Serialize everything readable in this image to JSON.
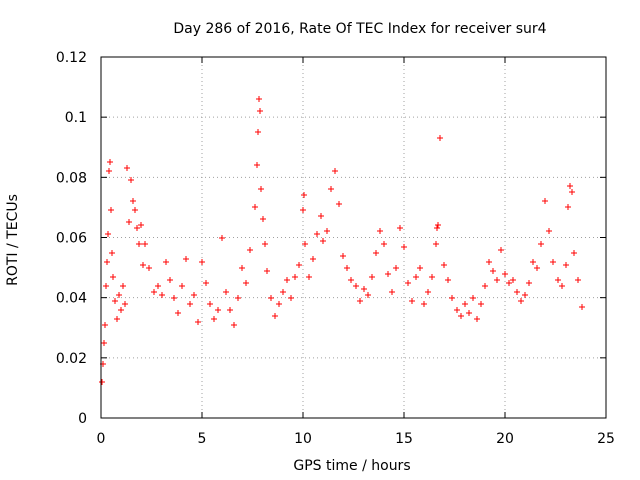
{
  "chart_data": {
    "type": "scatter",
    "title": "Day 286 of 2016, Rate Of TEC Index for receiver sur4",
    "xlabel": "GPS time / hours",
    "ylabel": "ROTI / TECUs",
    "xlim": [
      0,
      25
    ],
    "ylim": [
      0,
      0.12
    ],
    "xticks": [
      0,
      5,
      10,
      15,
      20,
      25
    ],
    "xtick_labels": [
      "0",
      "5",
      "10",
      "15",
      "20",
      "25"
    ],
    "yticks": [
      0,
      0.02,
      0.04,
      0.06,
      0.08,
      0.1,
      0.12
    ],
    "ytick_labels": [
      "0",
      "0.02",
      "0.04",
      "0.06",
      "0.08",
      "0.1",
      "0.12"
    ],
    "grid": true,
    "marker": "+",
    "color": "#ff0000",
    "series": [
      {
        "name": "ROTI",
        "points": [
          [
            0.05,
            0.012
          ],
          [
            0.1,
            0.018
          ],
          [
            0.15,
            0.025
          ],
          [
            0.2,
            0.031
          ],
          [
            0.25,
            0.044
          ],
          [
            0.3,
            0.052
          ],
          [
            0.35,
            0.061
          ],
          [
            0.4,
            0.082
          ],
          [
            0.45,
            0.085
          ],
          [
            0.5,
            0.069
          ],
          [
            0.55,
            0.055
          ],
          [
            0.6,
            0.047
          ],
          [
            0.7,
            0.039
          ],
          [
            0.8,
            0.033
          ],
          [
            0.9,
            0.041
          ],
          [
            1.0,
            0.036
          ],
          [
            1.1,
            0.044
          ],
          [
            1.2,
            0.038
          ],
          [
            1.3,
            0.083
          ],
          [
            1.4,
            0.065
          ],
          [
            1.5,
            0.079
          ],
          [
            1.6,
            0.072
          ],
          [
            1.7,
            0.069
          ],
          [
            1.8,
            0.063
          ],
          [
            1.9,
            0.058
          ],
          [
            2.0,
            0.064
          ],
          [
            2.1,
            0.051
          ],
          [
            2.2,
            0.058
          ],
          [
            2.4,
            0.05
          ],
          [
            2.6,
            0.042
          ],
          [
            2.8,
            0.044
          ],
          [
            3.0,
            0.041
          ],
          [
            3.2,
            0.052
          ],
          [
            3.4,
            0.046
          ],
          [
            3.6,
            0.04
          ],
          [
            3.8,
            0.035
          ],
          [
            4.0,
            0.044
          ],
          [
            4.2,
            0.053
          ],
          [
            4.4,
            0.038
          ],
          [
            4.6,
            0.041
          ],
          [
            4.8,
            0.032
          ],
          [
            5.0,
            0.052
          ],
          [
            5.2,
            0.045
          ],
          [
            5.4,
            0.038
          ],
          [
            5.6,
            0.033
          ],
          [
            5.8,
            0.036
          ],
          [
            6.0,
            0.06
          ],
          [
            6.2,
            0.042
          ],
          [
            6.4,
            0.036
          ],
          [
            6.6,
            0.031
          ],
          [
            6.8,
            0.04
          ],
          [
            7.0,
            0.05
          ],
          [
            7.2,
            0.045
          ],
          [
            7.4,
            0.056
          ],
          [
            7.6,
            0.07
          ],
          [
            7.7,
            0.084
          ],
          [
            7.75,
            0.095
          ],
          [
            7.8,
            0.106
          ],
          [
            7.85,
            0.102
          ],
          [
            7.9,
            0.076
          ],
          [
            8.0,
            0.066
          ],
          [
            8.1,
            0.058
          ],
          [
            8.2,
            0.049
          ],
          [
            8.4,
            0.04
          ],
          [
            8.6,
            0.034
          ],
          [
            8.8,
            0.038
          ],
          [
            9.0,
            0.042
          ],
          [
            9.2,
            0.046
          ],
          [
            9.4,
            0.04
          ],
          [
            9.6,
            0.047
          ],
          [
            9.8,
            0.051
          ],
          [
            10.0,
            0.069
          ],
          [
            10.05,
            0.074
          ],
          [
            10.1,
            0.058
          ],
          [
            10.3,
            0.047
          ],
          [
            10.5,
            0.053
          ],
          [
            10.7,
            0.061
          ],
          [
            10.9,
            0.067
          ],
          [
            11.0,
            0.059
          ],
          [
            11.2,
            0.062
          ],
          [
            11.4,
            0.076
          ],
          [
            11.6,
            0.082
          ],
          [
            11.8,
            0.071
          ],
          [
            12.0,
            0.054
          ],
          [
            12.2,
            0.05
          ],
          [
            12.4,
            0.046
          ],
          [
            12.6,
            0.044
          ],
          [
            12.8,
            0.039
          ],
          [
            13.0,
            0.043
          ],
          [
            13.2,
            0.041
          ],
          [
            13.4,
            0.047
          ],
          [
            13.6,
            0.055
          ],
          [
            13.8,
            0.062
          ],
          [
            14.0,
            0.058
          ],
          [
            14.2,
            0.048
          ],
          [
            14.4,
            0.042
          ],
          [
            14.6,
            0.05
          ],
          [
            14.8,
            0.063
          ],
          [
            15.0,
            0.057
          ],
          [
            15.2,
            0.045
          ],
          [
            15.4,
            0.039
          ],
          [
            15.6,
            0.047
          ],
          [
            15.8,
            0.05
          ],
          [
            16.0,
            0.038
          ],
          [
            16.2,
            0.042
          ],
          [
            16.4,
            0.047
          ],
          [
            16.6,
            0.058
          ],
          [
            16.65,
            0.063
          ],
          [
            16.7,
            0.064
          ],
          [
            16.8,
            0.093
          ],
          [
            17.0,
            0.051
          ],
          [
            17.2,
            0.046
          ],
          [
            17.4,
            0.04
          ],
          [
            17.6,
            0.036
          ],
          [
            17.8,
            0.034
          ],
          [
            18.0,
            0.038
          ],
          [
            18.2,
            0.035
          ],
          [
            18.4,
            0.04
          ],
          [
            18.6,
            0.033
          ],
          [
            18.8,
            0.038
          ],
          [
            19.0,
            0.044
          ],
          [
            19.2,
            0.052
          ],
          [
            19.4,
            0.049
          ],
          [
            19.6,
            0.046
          ],
          [
            19.8,
            0.056
          ],
          [
            20.0,
            0.048
          ],
          [
            20.2,
            0.045
          ],
          [
            20.4,
            0.046
          ],
          [
            20.6,
            0.042
          ],
          [
            20.8,
            0.039
          ],
          [
            21.0,
            0.041
          ],
          [
            21.2,
            0.045
          ],
          [
            21.4,
            0.052
          ],
          [
            21.6,
            0.05
          ],
          [
            21.8,
            0.058
          ],
          [
            22.0,
            0.072
          ],
          [
            22.2,
            0.062
          ],
          [
            22.4,
            0.052
          ],
          [
            22.6,
            0.046
          ],
          [
            22.8,
            0.044
          ],
          [
            23.0,
            0.051
          ],
          [
            23.1,
            0.07
          ],
          [
            23.2,
            0.077
          ],
          [
            23.3,
            0.075
          ],
          [
            23.4,
            0.055
          ],
          [
            23.6,
            0.046
          ],
          [
            23.8,
            0.037
          ]
        ]
      }
    ]
  }
}
